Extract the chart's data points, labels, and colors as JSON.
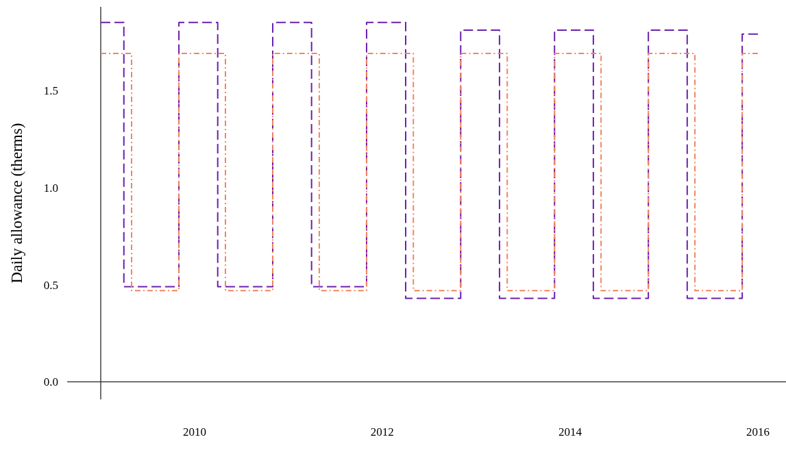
{
  "chart_data": {
    "type": "step",
    "ylabel": "Daily allowance (therms)",
    "xlim": [
      "2009-01-01",
      "2016-01-01"
    ],
    "ref_lines": [
      {
        "axis": "y",
        "value": 0
      }
    ],
    "xticks": [
      "2010",
      "2012",
      "2014",
      "2016"
    ],
    "ylim": [
      -0.09,
      1.93
    ],
    "yticks": [
      {
        "value": 0,
        "label": "0.0"
      },
      {
        "value": 0.5,
        "label": "0.5"
      },
      {
        "value": 1,
        "label": "1.0"
      },
      {
        "value": 1.5,
        "label": "1.5"
      }
    ],
    "grid": false,
    "series": [
      {
        "color": "#6a1fb0",
        "line_style": "dashed",
        "x": [
          "2009-01-01",
          "2009-04-01",
          "2009-11-01",
          "2010-04-01",
          "2010-11-01",
          "2011-04-01",
          "2011-11-01",
          "2012-04-01",
          "2012-11-01",
          "2013-04-01",
          "2013-11-01",
          "2014-04-01",
          "2014-11-01",
          "2015-04-01",
          "2015-11-01",
          "2016-01-01"
        ],
        "values": [
          1.85,
          0.49,
          1.85,
          0.49,
          1.85,
          0.49,
          1.85,
          0.43,
          1.81,
          0.43,
          1.81,
          0.43,
          1.81,
          0.43,
          1.79,
          1.79
        ]
      },
      {
        "color": "#f4845f",
        "line_style": "dashdot",
        "x": [
          "2009-01-01",
          "2009-05-01",
          "2009-11-01",
          "2010-05-01",
          "2010-11-01",
          "2011-05-01",
          "2011-11-01",
          "2012-05-01",
          "2012-11-01",
          "2013-05-01",
          "2013-11-01",
          "2014-05-01",
          "2014-11-01",
          "2015-05-01",
          "2015-11-01",
          "2016-01-01"
        ],
        "values": [
          1.69,
          0.47,
          1.69,
          0.47,
          1.69,
          0.47,
          1.69,
          0.47,
          1.69,
          0.47,
          1.69,
          0.47,
          1.69,
          0.47,
          1.69,
          1.69
        ]
      }
    ]
  }
}
